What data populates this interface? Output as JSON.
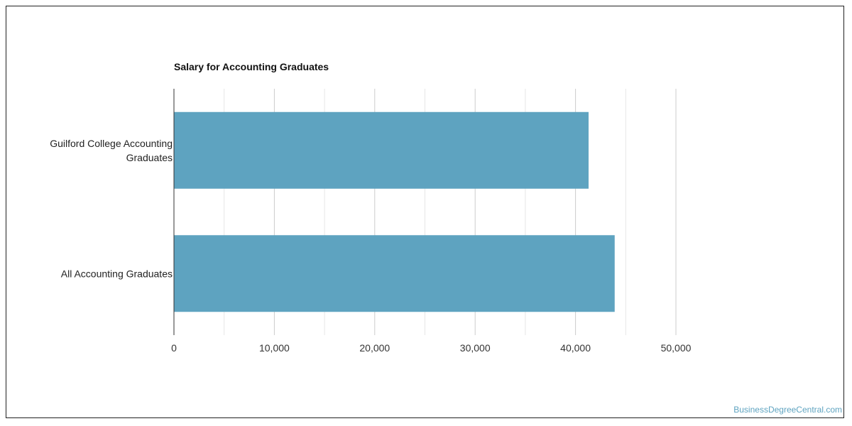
{
  "chart_data": {
    "type": "bar",
    "orientation": "horizontal",
    "title": "Salary for Accounting Graduates",
    "categories": [
      [
        "Guilford College Accounting",
        "Graduates"
      ],
      [
        "All Accounting Graduates"
      ]
    ],
    "values": [
      41300,
      43900
    ],
    "xlim": [
      0,
      50000
    ],
    "xticks": [
      "0",
      "10,000",
      "20,000",
      "30,000",
      "40,000",
      "50,000"
    ],
    "tick_values": [
      0,
      10000,
      20000,
      30000,
      40000,
      50000
    ],
    "grid": true,
    "bar_color": "#5ea3c0",
    "grid_color": "#cccccc",
    "axis_color": "#333333"
  },
  "watermark": "BusinessDegreeCentral.com"
}
